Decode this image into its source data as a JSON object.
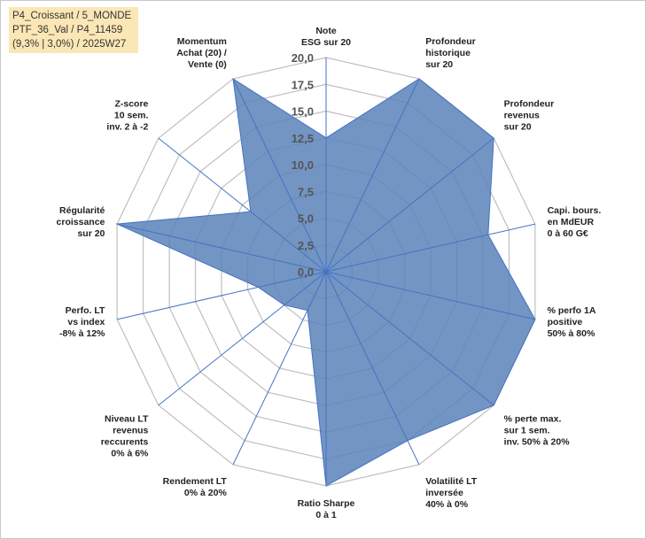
{
  "info": {
    "line1": "P4_Croissant / 5_MONDE",
    "line2": "PTF_36_Val / P4_11459",
    "line3": "(9,3% | 3,0%) / 2025W27"
  },
  "colors": {
    "fill": "#5b82b8",
    "stroke": "#4472c4",
    "grid": "#bfbfbf",
    "info_bg": "#fbe7b6"
  },
  "chart_data": {
    "type": "radar",
    "title": "",
    "rmin": 0,
    "rmax": 20,
    "tick_step": 2.5,
    "ticks": [
      "0,0",
      "2,5",
      "5,0",
      "7,5",
      "10,0",
      "12,5",
      "15,0",
      "17,5",
      "20,0"
    ],
    "grid": true,
    "categories": [
      [
        "Note",
        "ESG sur 20"
      ],
      [
        "Profondeur",
        "historique",
        "sur 20"
      ],
      [
        "Profondeur",
        "revenus",
        "sur 20"
      ],
      [
        "Capi. bours.",
        "en MdEUR",
        "0 à 60 G€"
      ],
      [
        "% perfo 1A",
        "positive",
        "50% à 80%"
      ],
      [
        "% perte max.",
        "sur 1 sem.",
        "inv. 50% à 20%"
      ],
      [
        "Volatilité LT",
        "inversée",
        "40% à 0%"
      ],
      [
        "Ratio Sharpe",
        "0 à 1"
      ],
      [
        "Rendement LT",
        "0% à 20%"
      ],
      [
        "Niveau LT",
        "revenus",
        "reccurents",
        "0% à 6%"
      ],
      [
        "Perfo. LT",
        "vs index",
        "-8% à 12%"
      ],
      [
        "Régularité",
        "croissance",
        "sur 20"
      ],
      [
        "Z-score",
        "10 sem.",
        "inv. 2 à -2"
      ],
      [
        "Momentum",
        "Achat (20) /",
        "Vente (0)"
      ]
    ],
    "series": [
      {
        "values": [
          12.5,
          20,
          20,
          15.5,
          20,
          20,
          17.5,
          20,
          4,
          5,
          6.5,
          20,
          9,
          20
        ]
      }
    ]
  }
}
